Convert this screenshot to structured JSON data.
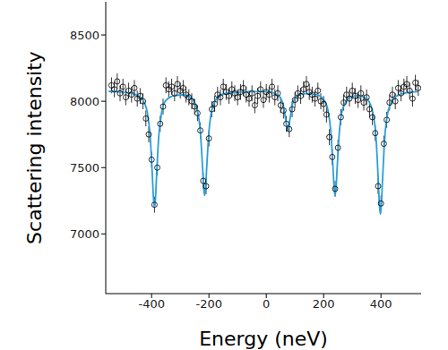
{
  "chart_data": {
    "type": "scatter",
    "x_label": "Energy (neV)",
    "y_label": "Scattering intensity",
    "xlim": [
      -560,
      540
    ],
    "ylim": [
      6550,
      8750
    ],
    "xticks": [
      -400,
      -200,
      0,
      200,
      400
    ],
    "yticks": [
      7000,
      7500,
      8000,
      8500
    ],
    "series": [
      {
        "type": "scatter",
        "marker": "circle",
        "color": "#000000",
        "x": [
          -540,
          -530,
          -520,
          -510,
          -500,
          -490,
          -480,
          -470,
          -460,
          -450,
          -440,
          -430,
          -420,
          -410,
          -400,
          -390,
          -380,
          -370,
          -360,
          -350,
          -340,
          -330,
          -320,
          -310,
          -300,
          -290,
          -280,
          -270,
          -260,
          -250,
          -240,
          -230,
          -220,
          -210,
          -200,
          -190,
          -180,
          -170,
          -160,
          -150,
          -140,
          -130,
          -120,
          -110,
          -100,
          -90,
          -80,
          -70,
          -60,
          -50,
          -40,
          -30,
          -20,
          -10,
          0,
          10,
          20,
          30,
          40,
          50,
          60,
          70,
          80,
          90,
          100,
          110,
          120,
          130,
          140,
          150,
          160,
          170,
          180,
          190,
          200,
          210,
          220,
          230,
          240,
          250,
          260,
          270,
          280,
          290,
          300,
          310,
          320,
          330,
          340,
          350,
          360,
          370,
          380,
          390,
          400,
          410,
          420,
          430,
          440,
          450,
          460,
          470,
          480,
          490,
          500,
          510,
          520,
          530
        ],
        "values": [
          8120,
          8090,
          8150,
          8060,
          8110,
          8030,
          8080,
          8050,
          8100,
          8020,
          8040,
          8000,
          7870,
          7750,
          7560,
          7220,
          7500,
          7830,
          7960,
          8120,
          8090,
          8110,
          8060,
          8130,
          8080,
          8100,
          8050,
          8030,
          8000,
          7960,
          7910,
          7780,
          7400,
          7360,
          7720,
          7940,
          7980,
          8050,
          8030,
          8110,
          8070,
          8040,
          8090,
          8060,
          8030,
          8070,
          8100,
          8050,
          8020,
          8060,
          7970,
          8040,
          8090,
          8010,
          8070,
          8050,
          8110,
          8030,
          8060,
          7970,
          7930,
          7830,
          7790,
          7940,
          8010,
          8060,
          8040,
          8090,
          8130,
          8070,
          8050,
          8020,
          8080,
          8000,
          7980,
          7900,
          7730,
          7580,
          7340,
          7650,
          7880,
          7990,
          8050,
          8020,
          8080,
          8040,
          8010,
          8060,
          7990,
          8030,
          7940,
          7880,
          7760,
          7360,
          7230,
          7680,
          7860,
          7990,
          8050,
          8000,
          8100,
          8060,
          8110,
          8130,
          8080,
          8020,
          8140,
          8100
        ],
        "errors": [
          60,
          60,
          60,
          60,
          60,
          60,
          60,
          60,
          60,
          60,
          60,
          60,
          60,
          60,
          60,
          60,
          60,
          60,
          60,
          60,
          60,
          60,
          60,
          60,
          60,
          60,
          60,
          60,
          60,
          60,
          60,
          60,
          60,
          60,
          60,
          60,
          60,
          60,
          60,
          60,
          60,
          60,
          60,
          60,
          60,
          60,
          60,
          60,
          60,
          60,
          60,
          60,
          60,
          60,
          60,
          60,
          60,
          60,
          60,
          60,
          60,
          60,
          60,
          60,
          60,
          60,
          60,
          60,
          60,
          60,
          60,
          60,
          60,
          60,
          60,
          60,
          60,
          60,
          60,
          60,
          60,
          60,
          60,
          60,
          60,
          60,
          60,
          60,
          60,
          60,
          60,
          60,
          60,
          60,
          60,
          60,
          60,
          60,
          60,
          60,
          60,
          60,
          60,
          60,
          60,
          60,
          60,
          60
        ]
      },
      {
        "type": "line",
        "color": "#2b9fd8",
        "x": [
          -550,
          -500,
          -460,
          -430,
          -415,
          -405,
          -398,
          -393,
          -390,
          -387,
          -382,
          -375,
          -365,
          -350,
          -320,
          -290,
          -260,
          -240,
          -230,
          -222,
          -218,
          -215,
          -212,
          -208,
          -200,
          -190,
          -170,
          -140,
          -100,
          -50,
          0,
          30,
          50,
          60,
          68,
          72,
          75,
          78,
          82,
          90,
          100,
          130,
          170,
          200,
          215,
          225,
          233,
          237,
          240,
          243,
          247,
          255,
          265,
          290,
          320,
          350,
          370,
          383,
          391,
          395,
          398,
          401,
          405,
          413,
          425,
          450,
          490,
          530
        ],
        "values": [
          8075,
          8069,
          8054,
          8007,
          7915,
          7737,
          7471,
          7252,
          7200,
          7252,
          7471,
          7737,
          7915,
          8007,
          8043,
          8048,
          8021,
          7927,
          7768,
          7491,
          7337,
          7290,
          7337,
          7491,
          7772,
          7932,
          8028,
          8060,
          8068,
          8073,
          8072,
          8060,
          8024,
          7963,
          7856,
          7798,
          7780,
          7798,
          7856,
          7963,
          8024,
          8057,
          8052,
          8014,
          7932,
          7772,
          7491,
          7337,
          7290,
          7337,
          7491,
          7772,
          7932,
          8026,
          8042,
          8020,
          7929,
          7717,
          7386,
          7205,
          7150,
          7205,
          7386,
          7717,
          7927,
          8033,
          8064,
          8072
        ]
      }
    ]
  }
}
